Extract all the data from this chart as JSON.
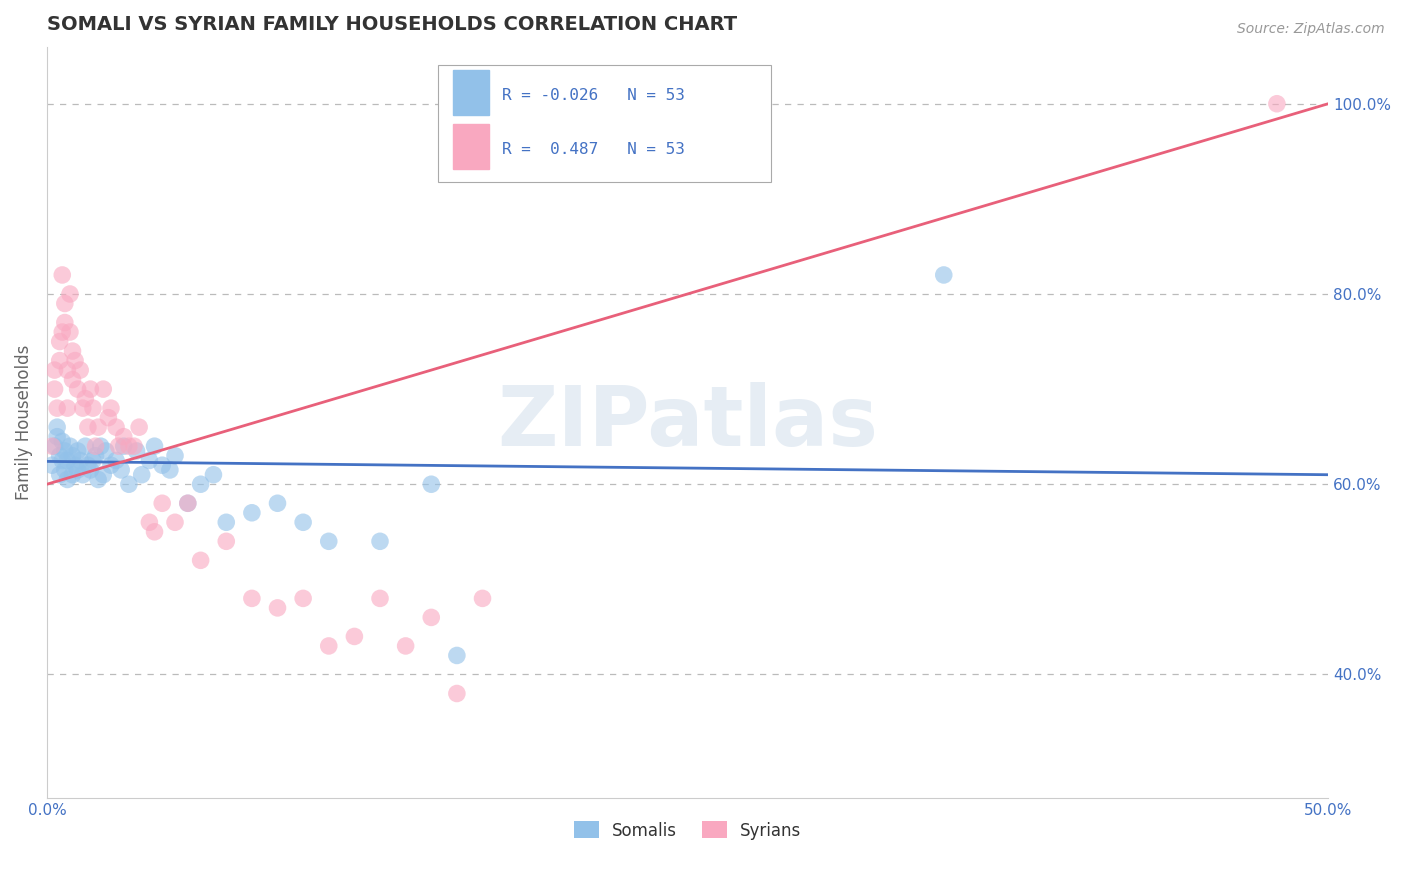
{
  "title": "SOMALI VS SYRIAN FAMILY HOUSEHOLDS CORRELATION CHART",
  "source": "Source: ZipAtlas.com",
  "ylabel": "Family Households",
  "xmin": 0.0,
  "xmax": 0.5,
  "ymin": 0.27,
  "ymax": 1.06,
  "right_yticks": [
    0.4,
    0.6,
    0.8,
    1.0
  ],
  "right_ytick_labels": [
    "40.0%",
    "60.0%",
    "80.0%",
    "100.0%"
  ],
  "somali_color": "#92c1e9",
  "syrian_color": "#f9a8c0",
  "somali_line_color": "#4472c4",
  "syrian_line_color": "#e8607a",
  "watermark_text": "ZIPatlas",
  "title_color": "#333333",
  "axis_label_color": "#4472c4",
  "somali_x": [
    0.002,
    0.003,
    0.004,
    0.004,
    0.005,
    0.005,
    0.006,
    0.006,
    0.007,
    0.007,
    0.008,
    0.008,
    0.009,
    0.01,
    0.01,
    0.011,
    0.012,
    0.012,
    0.013,
    0.014,
    0.015,
    0.016,
    0.017,
    0.018,
    0.019,
    0.02,
    0.021,
    0.022,
    0.023,
    0.025,
    0.027,
    0.029,
    0.03,
    0.032,
    0.035,
    0.037,
    0.04,
    0.042,
    0.045,
    0.048,
    0.05,
    0.055,
    0.06,
    0.065,
    0.07,
    0.08,
    0.09,
    0.1,
    0.11,
    0.13,
    0.15,
    0.16,
    0.35
  ],
  "somali_y": [
    0.62,
    0.64,
    0.65,
    0.66,
    0.61,
    0.63,
    0.625,
    0.645,
    0.615,
    0.635,
    0.605,
    0.625,
    0.64,
    0.61,
    0.63,
    0.62,
    0.615,
    0.635,
    0.625,
    0.61,
    0.64,
    0.62,
    0.615,
    0.625,
    0.63,
    0.605,
    0.64,
    0.61,
    0.635,
    0.62,
    0.625,
    0.615,
    0.64,
    0.6,
    0.635,
    0.61,
    0.625,
    0.64,
    0.62,
    0.615,
    0.63,
    0.58,
    0.6,
    0.61,
    0.56,
    0.57,
    0.58,
    0.56,
    0.54,
    0.54,
    0.6,
    0.42,
    0.82
  ],
  "syrian_x": [
    0.002,
    0.003,
    0.003,
    0.004,
    0.005,
    0.005,
    0.006,
    0.006,
    0.007,
    0.007,
    0.008,
    0.008,
    0.009,
    0.009,
    0.01,
    0.01,
    0.011,
    0.012,
    0.013,
    0.014,
    0.015,
    0.016,
    0.017,
    0.018,
    0.019,
    0.02,
    0.022,
    0.024,
    0.025,
    0.027,
    0.028,
    0.03,
    0.032,
    0.034,
    0.036,
    0.04,
    0.042,
    0.045,
    0.05,
    0.055,
    0.06,
    0.07,
    0.08,
    0.09,
    0.1,
    0.11,
    0.12,
    0.13,
    0.14,
    0.15,
    0.16,
    0.17,
    0.48
  ],
  "syrian_y": [
    0.64,
    0.7,
    0.72,
    0.68,
    0.73,
    0.75,
    0.76,
    0.82,
    0.77,
    0.79,
    0.68,
    0.72,
    0.76,
    0.8,
    0.71,
    0.74,
    0.73,
    0.7,
    0.72,
    0.68,
    0.69,
    0.66,
    0.7,
    0.68,
    0.64,
    0.66,
    0.7,
    0.67,
    0.68,
    0.66,
    0.64,
    0.65,
    0.64,
    0.64,
    0.66,
    0.56,
    0.55,
    0.58,
    0.56,
    0.58,
    0.52,
    0.54,
    0.48,
    0.47,
    0.48,
    0.43,
    0.44,
    0.48,
    0.43,
    0.46,
    0.38,
    0.48,
    1.0
  ],
  "somali_line_y0": 0.624,
  "somali_line_y1": 0.61,
  "syrian_line_y0": 0.6,
  "syrian_line_y1": 1.0
}
